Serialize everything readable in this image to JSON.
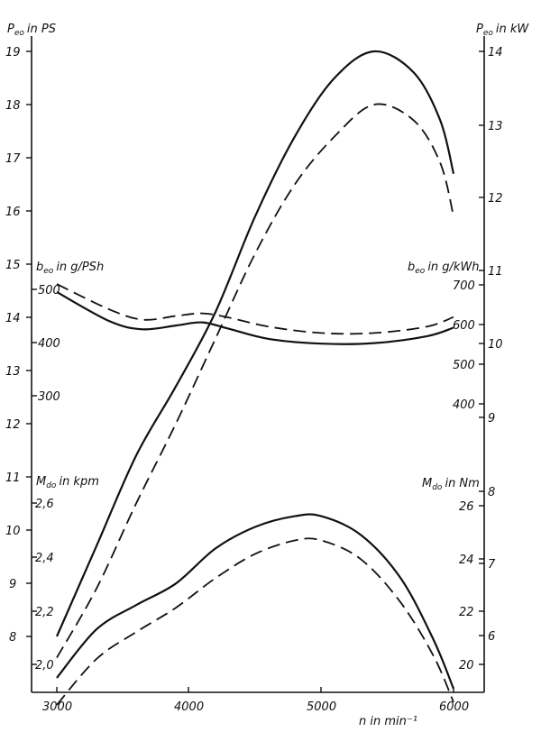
{
  "chart_data": {
    "type": "line",
    "xlabel": "n in min⁻¹",
    "x_ticks": [
      "3000",
      "4000",
      "5000",
      "6000"
    ],
    "xlim": [
      2820,
      6270
    ],
    "axes": {
      "power_ps": {
        "label": "P",
        "sub": "eo",
        "unit": "in PS",
        "ticks": [
          "8",
          "9",
          "10",
          "11",
          "12",
          "13",
          "14",
          "15",
          "16",
          "17",
          "18",
          "19"
        ],
        "range": [
          7.3,
          19.4
        ]
      },
      "power_kw": {
        "label": "P",
        "sub": "eo",
        "unit": "in kW",
        "ticks": [
          "6",
          "7",
          "8",
          "9",
          "10",
          "11",
          "12",
          "13",
          "14"
        ]
      },
      "bsfc_g_psh": {
        "label": "b",
        "sub": "eo",
        "unit": "in g/PSh",
        "ticks": [
          "300",
          "400",
          "500"
        ]
      },
      "bsfc_g_kwh": {
        "label": "b",
        "sub": "eo",
        "unit": "in g/kWh",
        "ticks": [
          "400",
          "500",
          "600",
          "700"
        ]
      },
      "torque_kpm": {
        "label": "M",
        "sub": "do",
        "unit": "in kpm",
        "ticks": [
          "2,0",
          "2,2",
          "2,4",
          "2,6"
        ]
      },
      "torque_nm": {
        "label": "M",
        "sub": "do",
        "unit": "in Nm",
        "ticks": [
          "20",
          "22",
          "24",
          "26"
        ]
      }
    },
    "series": [
      {
        "group": "power",
        "style": "solid",
        "x": [
          3000,
          3300,
          3600,
          3900,
          4200,
          4500,
          4800,
          5100,
          5400,
          5700,
          5900,
          6000
        ],
        "y": [
          8.0,
          9.7,
          11.4,
          12.7,
          14.1,
          15.9,
          17.4,
          18.5,
          19.0,
          18.6,
          17.7,
          16.7
        ]
      },
      {
        "group": "power",
        "style": "dashed",
        "x": [
          3000,
          3300,
          3600,
          3900,
          4200,
          4500,
          4800,
          5100,
          5400,
          5700,
          5900,
          6000
        ],
        "y": [
          7.6,
          8.9,
          10.5,
          12.0,
          13.6,
          15.2,
          16.5,
          17.4,
          18.0,
          17.7,
          16.9,
          15.9
        ]
      },
      {
        "group": "bsfc",
        "style": "solid",
        "x": [
          3000,
          3400,
          3650,
          3900,
          4100,
          4300,
          4600,
          5000,
          5400,
          5800,
          6000
        ],
        "y": [
          495,
          440,
          425,
          432,
          438,
          426,
          407,
          398,
          399,
          412,
          428
        ]
      },
      {
        "group": "bsfc",
        "style": "dashed",
        "x": [
          3000,
          3400,
          3650,
          3900,
          4100,
          4300,
          4600,
          5000,
          5400,
          5800,
          6000
        ],
        "y": [
          510,
          462,
          443,
          450,
          455,
          447,
          430,
          418,
          418,
          430,
          448
        ]
      },
      {
        "group": "torque",
        "style": "solid",
        "x": [
          3000,
          3300,
          3600,
          3900,
          4200,
          4500,
          4800,
          5000,
          5300,
          5600,
          5850,
          6000
        ],
        "y": [
          1.95,
          2.13,
          2.22,
          2.3,
          2.43,
          2.51,
          2.55,
          2.55,
          2.48,
          2.32,
          2.09,
          1.91
        ]
      },
      {
        "group": "torque",
        "style": "dashed",
        "x": [
          3000,
          3300,
          3600,
          3900,
          4200,
          4500,
          4800,
          5000,
          5300,
          5600,
          5850,
          6000
        ],
        "y": [
          1.85,
          2.02,
          2.12,
          2.21,
          2.32,
          2.41,
          2.46,
          2.46,
          2.39,
          2.23,
          2.03,
          1.86
        ]
      }
    ]
  }
}
